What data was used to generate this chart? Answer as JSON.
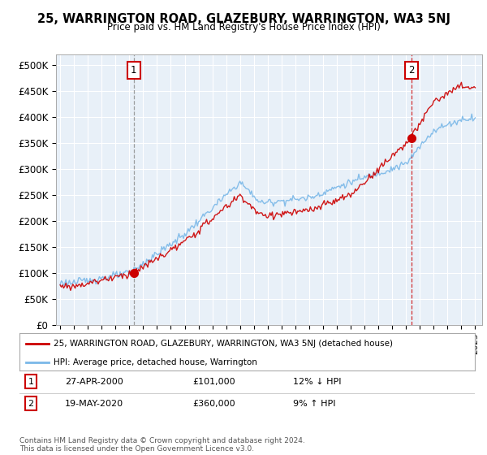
{
  "title": "25, WARRINGTON ROAD, GLAZEBURY, WARRINGTON, WA3 5NJ",
  "subtitle": "Price paid vs. HM Land Registry's House Price Index (HPI)",
  "ylabel_ticks": [
    "£0",
    "£50K",
    "£100K",
    "£150K",
    "£200K",
    "£250K",
    "£300K",
    "£350K",
    "£400K",
    "£450K",
    "£500K"
  ],
  "ytick_values": [
    0,
    50000,
    100000,
    150000,
    200000,
    250000,
    300000,
    350000,
    400000,
    450000,
    500000
  ],
  "ylim": [
    0,
    520000
  ],
  "xlim_left": 1994.7,
  "xlim_right": 2025.5,
  "sale1_year": 2000.32,
  "sale1_price": 101000,
  "sale2_year": 2020.38,
  "sale2_price": 360000,
  "legend_line1": "25, WARRINGTON ROAD, GLAZEBURY, WARRINGTON, WA3 5NJ (detached house)",
  "legend_line2": "HPI: Average price, detached house, Warrington",
  "annotation1_date": "27-APR-2000",
  "annotation1_price": "£101,000",
  "annotation1_hpi": "12% ↓ HPI",
  "annotation2_date": "19-MAY-2020",
  "annotation2_price": "£360,000",
  "annotation2_hpi": "9% ↑ HPI",
  "footnote": "Contains HM Land Registry data © Crown copyright and database right 2024.\nThis data is licensed under the Open Government Licence v3.0.",
  "hpi_color": "#7ab8e8",
  "sale_color": "#cc0000",
  "sale1_vline_color": "#888888",
  "sale2_vline_color": "#cc0000",
  "bg_chart": "#e8f0f8",
  "bg_fig": "#ffffff",
  "grid_color": "#ffffff",
  "label_box_color": "#cc0000"
}
